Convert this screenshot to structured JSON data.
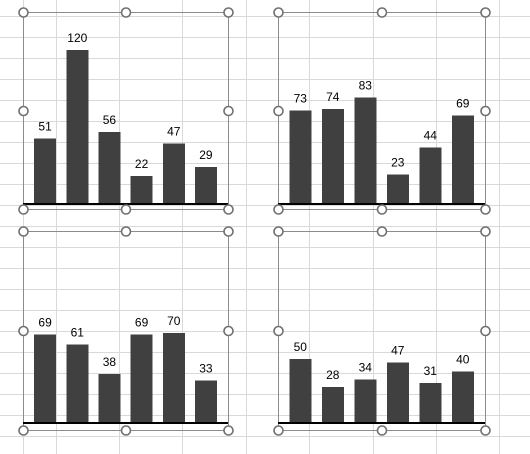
{
  "spreadsheet": {
    "gridline_color": "#d9d9d9"
  },
  "chart_style": {
    "bar_color": "#404040",
    "axis_color": "#000000",
    "frame_color": "#8c8c8c",
    "handle_color": "#707070"
  },
  "chart_data": [
    {
      "type": "bar",
      "title": "",
      "xlabel": "",
      "ylabel": "",
      "categories": [
        "",
        "",
        "",
        "",
        "",
        ""
      ],
      "values": [
        51,
        120,
        56,
        22,
        47,
        29
      ],
      "data_labels": [
        "51",
        "120",
        "56",
        "22",
        "47",
        "29"
      ],
      "ylim": [
        0,
        120
      ],
      "grid": false,
      "legend": "none",
      "selected": true
    },
    {
      "type": "bar",
      "title": "",
      "xlabel": "",
      "ylabel": "",
      "categories": [
        "",
        "",
        "",
        "",
        "",
        ""
      ],
      "values": [
        73,
        74,
        83,
        23,
        44,
        69
      ],
      "data_labels": [
        "73",
        "74",
        "83",
        "23",
        "44",
        "69"
      ],
      "ylim": [
        0,
        120
      ],
      "grid": false,
      "legend": "none",
      "selected": true
    },
    {
      "type": "bar",
      "title": "",
      "xlabel": "",
      "ylabel": "",
      "categories": [
        "",
        "",
        "",
        "",
        "",
        ""
      ],
      "values": [
        69,
        61,
        38,
        69,
        70,
        33
      ],
      "data_labels": [
        "69",
        "61",
        "38",
        "69",
        "70",
        "33"
      ],
      "ylim": [
        0,
        120
      ],
      "grid": false,
      "legend": "none",
      "selected": true
    },
    {
      "type": "bar",
      "title": "",
      "xlabel": "",
      "ylabel": "",
      "categories": [
        "",
        "",
        "",
        "",
        "",
        ""
      ],
      "values": [
        50,
        28,
        34,
        47,
        31,
        40
      ],
      "data_labels": [
        "50",
        "28",
        "34",
        "47",
        "31",
        "40"
      ],
      "ylim": [
        0,
        120
      ],
      "grid": false,
      "legend": "none",
      "selected": true
    }
  ]
}
